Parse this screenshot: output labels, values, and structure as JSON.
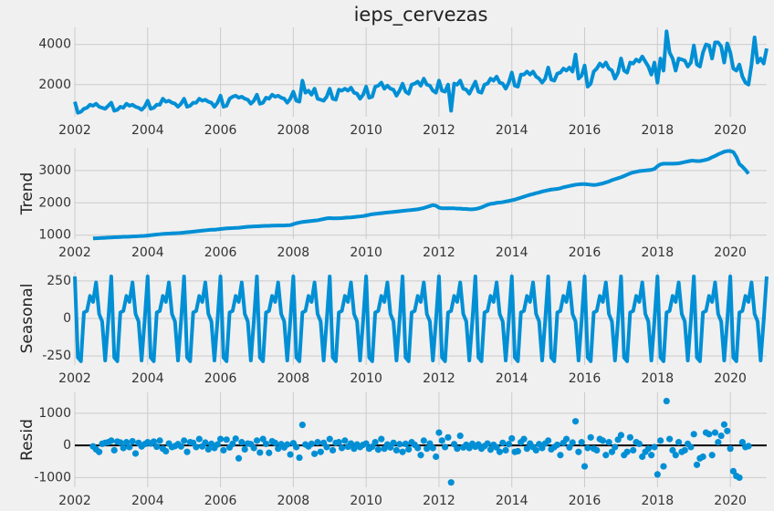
{
  "chart_data": {
    "type": "decomposition",
    "title": "ieps_cervezas",
    "x": [
      2002,
      2002.083,
      2002.167,
      2002.25,
      2002.333,
      2002.417,
      2002.5,
      2002.583,
      2002.667,
      2002.75,
      2002.833,
      2002.917,
      2003,
      2003.083,
      2003.167,
      2003.25,
      2003.333,
      2003.417,
      2003.5,
      2003.583,
      2003.667,
      2003.75,
      2003.833,
      2003.917,
      2004,
      2004.083,
      2004.167,
      2004.25,
      2004.333,
      2004.417,
      2004.5,
      2004.583,
      2004.667,
      2004.75,
      2004.833,
      2004.917,
      2005,
      2005.083,
      2005.167,
      2005.25,
      2005.333,
      2005.417,
      2005.5,
      2005.583,
      2005.667,
      2005.75,
      2005.833,
      2005.917,
      2006,
      2006.083,
      2006.167,
      2006.25,
      2006.333,
      2006.417,
      2006.5,
      2006.583,
      2006.667,
      2006.75,
      2006.833,
      2006.917,
      2007,
      2007.083,
      2007.167,
      2007.25,
      2007.333,
      2007.417,
      2007.5,
      2007.583,
      2007.667,
      2007.75,
      2007.833,
      2007.917,
      2008,
      2008.083,
      2008.167,
      2008.25,
      2008.333,
      2008.417,
      2008.5,
      2008.583,
      2008.667,
      2008.75,
      2008.833,
      2008.917,
      2009,
      2009.083,
      2009.167,
      2009.25,
      2009.333,
      2009.417,
      2009.5,
      2009.583,
      2009.667,
      2009.75,
      2009.833,
      2009.917,
      2010,
      2010.083,
      2010.167,
      2010.25,
      2010.333,
      2010.417,
      2010.5,
      2010.583,
      2010.667,
      2010.75,
      2010.833,
      2010.917,
      2011,
      2011.083,
      2011.167,
      2011.25,
      2011.333,
      2011.417,
      2011.5,
      2011.583,
      2011.667,
      2011.75,
      2011.833,
      2011.917,
      2012,
      2012.083,
      2012.167,
      2012.25,
      2012.333,
      2012.417,
      2012.5,
      2012.583,
      2012.667,
      2012.75,
      2012.833,
      2012.917,
      2013,
      2013.083,
      2013.167,
      2013.25,
      2013.333,
      2013.417,
      2013.5,
      2013.583,
      2013.667,
      2013.75,
      2013.833,
      2013.917,
      2014,
      2014.083,
      2014.167,
      2014.25,
      2014.333,
      2014.417,
      2014.5,
      2014.583,
      2014.667,
      2014.75,
      2014.833,
      2014.917,
      2015,
      2015.083,
      2015.167,
      2015.25,
      2015.333,
      2015.417,
      2015.5,
      2015.583,
      2015.667,
      2015.75,
      2015.833,
      2015.917,
      2016,
      2016.083,
      2016.167,
      2016.25,
      2016.333,
      2016.417,
      2016.5,
      2016.583,
      2016.667,
      2016.75,
      2016.833,
      2016.917,
      2017,
      2017.083,
      2017.167,
      2017.25,
      2017.333,
      2017.417,
      2017.5,
      2017.583,
      2017.667,
      2017.75,
      2017.833,
      2017.917,
      2018,
      2018.083,
      2018.167,
      2018.25,
      2018.333,
      2018.417,
      2018.5,
      2018.583,
      2018.667,
      2018.75,
      2018.833,
      2018.917,
      2019,
      2019.083,
      2019.167,
      2019.25,
      2019.333,
      2019.417,
      2019.5,
      2019.583,
      2019.667,
      2019.75,
      2019.833,
      2019.917,
      2020,
      2020.083,
      2020.167,
      2020.25,
      2020.333,
      2020.417,
      2020.5,
      2020.583,
      2020.667,
      2020.75,
      2020.833,
      2020.917,
      2021
    ],
    "xlim": [
      2002,
      2021
    ],
    "xticks": [
      2002,
      2004,
      2006,
      2008,
      2010,
      2012,
      2014,
      2016,
      2018,
      2020
    ],
    "grid": true,
    "panels": [
      {
        "type": "line",
        "color": "#008fd5",
        "ylim": [
          400,
          4850
        ],
        "yticks": [
          2000,
          4000
        ],
        "values": [
          1150,
          600,
          650,
          800,
          850,
          1000,
          950,
          1050,
          900,
          850,
          800,
          950,
          1100,
          700,
          750,
          900,
          850,
          1050,
          950,
          1000,
          900,
          850,
          750,
          900,
          1200,
          800,
          850,
          1000,
          1000,
          1300,
          1150,
          1200,
          1100,
          1050,
          900,
          1050,
          1300,
          900,
          950,
          1100,
          1100,
          1300,
          1200,
          1250,
          1150,
          1100,
          900,
          1100,
          1450,
          900,
          950,
          1300,
          1400,
          1450,
          1350,
          1400,
          1300,
          1250,
          1050,
          1200,
          1500,
          1050,
          1100,
          1350,
          1300,
          1500,
          1400,
          1450,
          1350,
          1300,
          1100,
          1300,
          1650,
          1200,
          1150,
          2200,
          1600,
          1700,
          1500,
          1800,
          1300,
          1250,
          1200,
          1400,
          1800,
          1300,
          1250,
          1750,
          1700,
          1800,
          1700,
          1850,
          1600,
          1550,
          1300,
          1500,
          1900,
          1350,
          1400,
          1900,
          1950,
          2100,
          1800,
          1950,
          1800,
          1750,
          1450,
          1700,
          2050,
          1650,
          1550,
          2000,
          2050,
          2150,
          1950,
          2300,
          2000,
          1950,
          1700,
          1600,
          2200,
          1700,
          1650,
          2000,
          700,
          2050,
          2000,
          2200,
          1800,
          1750,
          1550,
          1850,
          2150,
          1650,
          1600,
          2000,
          2050,
          2300,
          2200,
          2400,
          2100,
          2050,
          1800,
          2100,
          2600,
          1950,
          1900,
          2500,
          2500,
          2650,
          2500,
          2650,
          2400,
          2300,
          2100,
          2300,
          2850,
          2250,
          2200,
          2550,
          2600,
          2800,
          2700,
          2850,
          2650,
          3500,
          2300,
          2450,
          2950,
          1900,
          2050,
          2650,
          2800,
          3050,
          2900,
          3100,
          2800,
          2700,
          2300,
          2600,
          3300,
          2700,
          2600,
          3100,
          3050,
          3250,
          3150,
          3400,
          3150,
          2900,
          2500,
          3100,
          2100,
          3300,
          2700,
          4650,
          3600,
          3300,
          2700,
          3300,
          3250,
          3200,
          2900,
          3100,
          3950,
          3000,
          2900,
          3600,
          4000,
          3950,
          3300,
          4100,
          4100,
          3900,
          3100,
          4050,
          3600,
          2800,
          2700,
          3000,
          2400,
          2100,
          2000,
          3000,
          4350,
          3100,
          3300,
          3050,
          3800
        ]
      },
      {
        "type": "line",
        "ylabel": "Trend",
        "color": "#008fd5",
        "ylim": [
          880,
          3700
        ],
        "yticks": [
          1000,
          2000,
          3000
        ],
        "values": [
          null,
          null,
          null,
          null,
          null,
          null,
          900,
          905,
          910,
          915,
          920,
          925,
          930,
          935,
          940,
          945,
          950,
          950,
          955,
          960,
          965,
          970,
          975,
          980,
          990,
          1000,
          1010,
          1020,
          1030,
          1040,
          1045,
          1050,
          1055,
          1060,
          1065,
          1070,
          1080,
          1090,
          1100,
          1110,
          1120,
          1130,
          1140,
          1150,
          1160,
          1170,
          1170,
          1180,
          1190,
          1200,
          1210,
          1215,
          1220,
          1225,
          1230,
          1240,
          1250,
          1260,
          1265,
          1270,
          1275,
          1280,
          1285,
          1290,
          1290,
          1295,
          1295,
          1300,
          1300,
          1300,
          1305,
          1310,
          1340,
          1370,
          1390,
          1410,
          1420,
          1430,
          1440,
          1450,
          1460,
          1480,
          1500,
          1520,
          1530,
          1520,
          1520,
          1525,
          1530,
          1540,
          1545,
          1550,
          1560,
          1570,
          1580,
          1590,
          1610,
          1630,
          1650,
          1660,
          1670,
          1680,
          1690,
          1700,
          1710,
          1720,
          1730,
          1740,
          1750,
          1760,
          1770,
          1780,
          1790,
          1800,
          1820,
          1840,
          1870,
          1900,
          1930,
          1910,
          1850,
          1830,
          1830,
          1830,
          1830,
          1830,
          1820,
          1820,
          1810,
          1810,
          1800,
          1800,
          1810,
          1830,
          1860,
          1900,
          1940,
          1970,
          1980,
          2000,
          2010,
          2020,
          2040,
          2060,
          2080,
          2100,
          2130,
          2160,
          2190,
          2220,
          2250,
          2270,
          2300,
          2320,
          2350,
          2370,
          2390,
          2410,
          2420,
          2430,
          2450,
          2480,
          2500,
          2520,
          2540,
          2560,
          2570,
          2580,
          2580,
          2570,
          2560,
          2550,
          2560,
          2580,
          2600,
          2630,
          2660,
          2700,
          2730,
          2760,
          2790,
          2830,
          2870,
          2910,
          2940,
          2960,
          2980,
          2990,
          3000,
          3010,
          3020,
          3050,
          3130,
          3190,
          3210,
          3210,
          3210,
          3210,
          3215,
          3220,
          3240,
          3260,
          3280,
          3300,
          3300,
          3290,
          3290,
          3310,
          3330,
          3360,
          3410,
          3450,
          3500,
          3540,
          3580,
          3600,
          3600,
          3570,
          3420,
          3200,
          3120,
          3020,
          2900,
          null,
          null,
          null,
          null,
          null,
          null
        ]
      },
      {
        "type": "line",
        "ylabel": "Seasonal",
        "color": "#008fd5",
        "ylim": [
          -310,
          310
        ],
        "yticks": [
          -250,
          0,
          250
        ],
        "values": [
          280,
          -260,
          -285,
          40,
          50,
          150,
          110,
          240,
          30,
          -20,
          -280,
          -15,
          280,
          -260,
          -285,
          40,
          50,
          150,
          110,
          240,
          30,
          -20,
          -280,
          -15,
          280,
          -260,
          -285,
          40,
          50,
          150,
          110,
          240,
          30,
          -20,
          -280,
          -15,
          280,
          -260,
          -285,
          40,
          50,
          150,
          110,
          240,
          30,
          -20,
          -280,
          -15,
          280,
          -260,
          -285,
          40,
          50,
          150,
          110,
          240,
          30,
          -20,
          -280,
          -15,
          280,
          -260,
          -285,
          40,
          50,
          150,
          110,
          240,
          30,
          -20,
          -280,
          -15,
          280,
          -260,
          -285,
          40,
          50,
          150,
          110,
          240,
          30,
          -20,
          -280,
          -15,
          280,
          -260,
          -285,
          40,
          50,
          150,
          110,
          240,
          30,
          -20,
          -280,
          -15,
          280,
          -260,
          -285,
          40,
          50,
          150,
          110,
          240,
          30,
          -20,
          -280,
          -15,
          280,
          -260,
          -285,
          40,
          50,
          150,
          110,
          240,
          30,
          -20,
          -280,
          -15,
          280,
          -260,
          -285,
          40,
          50,
          150,
          110,
          240,
          30,
          -20,
          -280,
          -15,
          280,
          -260,
          -285,
          40,
          50,
          150,
          110,
          240,
          30,
          -20,
          -280,
          -15,
          280,
          -260,
          -285,
          40,
          50,
          150,
          110,
          240,
          30,
          -20,
          -280,
          -15,
          280,
          -260,
          -285,
          40,
          50,
          150,
          110,
          240,
          30,
          -20,
          -280,
          -15,
          280,
          -260,
          -285,
          40,
          50,
          150,
          110,
          240,
          30,
          -20,
          -280,
          -15,
          280,
          -260,
          -285,
          40,
          50,
          150,
          110,
          240,
          30,
          -20,
          -280,
          -15,
          280,
          -260,
          -285,
          40,
          50,
          150,
          110,
          240,
          30,
          -20,
          -280,
          -15,
          280,
          -260,
          -285,
          40,
          50,
          150,
          110,
          240,
          30,
          -20,
          -280,
          -15,
          280,
          -260,
          -285,
          40,
          50,
          150,
          110,
          240,
          30,
          -20,
          -280,
          -15,
          280
        ]
      },
      {
        "type": "scatter",
        "ylabel": "Resid",
        "color": "#008fd5",
        "ylim": [
          -1300,
          1650
        ],
        "yticks": [
          -1000,
          0,
          1000
        ],
        "values": [
          null,
          null,
          null,
          null,
          null,
          null,
          -30,
          -120,
          -200,
          50,
          80,
          100,
          150,
          -150,
          120,
          90,
          -80,
          100,
          -50,
          130,
          -250,
          80,
          -30,
          40,
          100,
          60,
          120,
          -40,
          150,
          -100,
          -180,
          60,
          -50,
          -20,
          40,
          -30,
          150,
          -200,
          100,
          80,
          -50,
          200,
          -30,
          90,
          -120,
          50,
          -80,
          30,
          200,
          -150,
          180,
          -60,
          50,
          210,
          -400,
          100,
          -120,
          60,
          40,
          -80,
          150,
          -220,
          200,
          50,
          -230,
          130,
          80,
          -100,
          40,
          -60,
          30,
          -280,
          70,
          -50,
          -380,
          640,
          30,
          -30,
          50,
          -260,
          100,
          -200,
          80,
          -50,
          200,
          -150,
          80,
          100,
          -80,
          150,
          -40,
          60,
          -100,
          30,
          -50,
          20,
          60,
          -100,
          -40,
          100,
          -130,
          200,
          -100,
          30,
          -60,
          80,
          -150,
          40,
          -200,
          50,
          -120,
          100,
          20,
          -80,
          -300,
          150,
          -100,
          60,
          -80,
          -350,
          400,
          150,
          -50,
          250,
          -1150,
          40,
          -100,
          300,
          -60,
          20,
          -80,
          50,
          -40,
          30,
          -100,
          -20,
          60,
          -130,
          20,
          -60,
          -200,
          80,
          -150,
          40,
          220,
          -200,
          -180,
          100,
          200,
          -100,
          60,
          -50,
          -150,
          40,
          -80,
          60,
          150,
          -120,
          -50,
          20,
          -300,
          80,
          200,
          -60,
          90,
          750,
          -200,
          100,
          -650,
          -80,
          250,
          -100,
          -150,
          200,
          150,
          -300,
          100,
          -200,
          -50,
          180,
          320,
          -300,
          -200,
          250,
          -150,
          100,
          50,
          -350,
          -200,
          -100,
          -300,
          -50,
          -900,
          150,
          -650,
          1380,
          200,
          -150,
          -300,
          100,
          -200,
          -150,
          50,
          -50,
          350,
          -600,
          -400,
          -350,
          400,
          350,
          -300,
          400,
          100,
          300,
          650,
          450,
          -100,
          -800,
          -950,
          -1000,
          100,
          -50,
          -20,
          null,
          null,
          null,
          null,
          null,
          null
        ]
      }
    ]
  }
}
